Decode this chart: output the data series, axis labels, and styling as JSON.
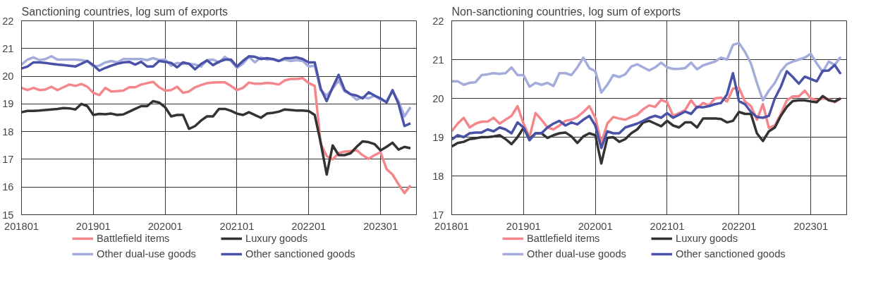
{
  "chart_data": [
    {
      "type": "line",
      "title": "Sanctioning countries, log sum of exports",
      "categories": [
        "201801",
        null,
        null,
        null,
        null,
        null,
        null,
        null,
        null,
        null,
        null,
        null,
        "201901",
        null,
        null,
        null,
        null,
        null,
        null,
        null,
        null,
        null,
        null,
        null,
        "202001",
        null,
        null,
        null,
        null,
        null,
        null,
        null,
        null,
        null,
        null,
        null,
        "202101",
        null,
        null,
        null,
        null,
        null,
        null,
        null,
        null,
        null,
        null,
        null,
        "202201",
        null,
        null,
        null,
        null,
        null,
        null,
        null,
        null,
        null,
        null,
        null,
        "202301",
        null,
        null,
        null,
        null,
        null
      ],
      "ylim": [
        15,
        22
      ],
      "yticks": [
        15,
        16,
        17,
        18,
        19,
        20,
        21,
        22
      ],
      "grid": true,
      "legend": "bottom",
      "marker": "none",
      "line_style": "solid",
      "series": [
        {
          "name": "Battlefield items",
          "color": "#f4868c",
          "values": [
            19.58,
            19.5,
            19.58,
            19.5,
            19.52,
            19.62,
            19.5,
            19.6,
            19.7,
            19.65,
            19.72,
            19.62,
            19.4,
            19.32,
            19.58,
            19.45,
            19.46,
            19.48,
            19.6,
            19.6,
            19.7,
            19.75,
            19.8,
            19.6,
            19.48,
            19.5,
            19.62,
            19.4,
            19.45,
            19.6,
            19.68,
            19.75,
            19.77,
            19.78,
            19.78,
            19.65,
            19.5,
            19.58,
            19.77,
            19.73,
            19.73,
            19.76,
            19.74,
            19.7,
            19.85,
            19.9,
            19.9,
            19.93,
            19.75,
            19.65,
            17.55,
            17.12,
            17.0,
            17.22,
            17.28,
            17.3,
            17.33,
            17.15,
            17.02,
            17.15,
            17.26,
            16.65,
            16.45,
            16.1,
            15.78,
            16.06
          ]
        },
        {
          "name": "Other dual-use goods",
          "color": "#a4acdb",
          "values": [
            20.42,
            20.6,
            20.68,
            20.58,
            20.62,
            20.72,
            20.6,
            20.6,
            20.6,
            20.6,
            20.58,
            20.55,
            20.35,
            20.38,
            20.5,
            20.55,
            20.5,
            20.62,
            20.62,
            20.62,
            20.62,
            20.58,
            20.65,
            20.58,
            20.6,
            20.38,
            20.48,
            20.45,
            20.45,
            20.42,
            20.35,
            20.58,
            20.6,
            20.5,
            20.7,
            20.55,
            20.3,
            20.45,
            20.7,
            20.5,
            20.68,
            20.6,
            20.62,
            20.55,
            20.6,
            20.55,
            20.58,
            20.55,
            20.35,
            20.38,
            19.5,
            19.3,
            19.55,
            19.85,
            19.45,
            19.35,
            19.15,
            19.25,
            19.2,
            19.3,
            19.15,
            19.1,
            19.45,
            19.1,
            18.55,
            18.88
          ]
        },
        {
          "name": "Luxury goods",
          "color": "#333333",
          "values": [
            18.7,
            18.75,
            18.75,
            18.76,
            18.78,
            18.8,
            18.82,
            18.85,
            18.84,
            18.8,
            19.0,
            18.92,
            18.6,
            18.64,
            18.63,
            18.65,
            18.6,
            18.62,
            18.72,
            18.82,
            18.92,
            18.92,
            19.1,
            19.05,
            18.88,
            18.55,
            18.6,
            18.6,
            18.1,
            18.2,
            18.4,
            18.55,
            18.55,
            18.82,
            18.82,
            18.75,
            18.65,
            18.6,
            18.7,
            18.6,
            18.5,
            18.65,
            18.68,
            18.72,
            18.8,
            18.78,
            18.76,
            18.76,
            18.74,
            18.6,
            17.6,
            16.45,
            17.5,
            17.15,
            17.15,
            17.22,
            17.45,
            17.65,
            17.62,
            17.55,
            17.32,
            17.45,
            17.6,
            17.35,
            17.45,
            17.4
          ]
        },
        {
          "name": "Other sanctioned goods",
          "color": "#4a52a8",
          "values": [
            20.28,
            20.35,
            20.5,
            20.5,
            20.48,
            20.45,
            20.42,
            20.4,
            20.38,
            20.35,
            20.45,
            20.55,
            20.4,
            20.2,
            20.3,
            20.38,
            20.45,
            20.5,
            20.52,
            20.42,
            20.52,
            20.35,
            20.35,
            20.55,
            20.52,
            20.48,
            20.32,
            20.5,
            20.45,
            20.25,
            20.44,
            20.57,
            20.4,
            20.52,
            20.6,
            20.6,
            20.35,
            20.55,
            20.72,
            20.7,
            20.62,
            20.65,
            20.62,
            20.55,
            20.65,
            20.65,
            20.68,
            20.62,
            20.5,
            20.5,
            19.55,
            19.1,
            19.6,
            20.05,
            19.5,
            19.35,
            19.3,
            19.2,
            19.42,
            19.3,
            19.2,
            19.05,
            19.5,
            19.0,
            18.2,
            18.3
          ]
        }
      ]
    },
    {
      "type": "line",
      "title": "Non-sanctioning countries, log sum of exports",
      "categories": [
        "201801",
        null,
        null,
        null,
        null,
        null,
        null,
        null,
        null,
        null,
        null,
        null,
        "201901",
        null,
        null,
        null,
        null,
        null,
        null,
        null,
        null,
        null,
        null,
        null,
        "202001",
        null,
        null,
        null,
        null,
        null,
        null,
        null,
        null,
        null,
        null,
        null,
        "202101",
        null,
        null,
        null,
        null,
        null,
        null,
        null,
        null,
        null,
        null,
        null,
        "202201",
        null,
        null,
        null,
        null,
        null,
        null,
        null,
        null,
        null,
        null,
        null,
        "202301",
        null,
        null,
        null,
        null,
        null
      ],
      "ylim": [
        17,
        22
      ],
      "yticks": [
        17,
        18,
        19,
        20,
        21,
        22
      ],
      "grid": true,
      "legend": "bottom",
      "marker": "none",
      "line_style": "solid",
      "series": [
        {
          "name": "Battlefield items",
          "color": "#f4868c",
          "values": [
            19.15,
            19.35,
            19.5,
            19.25,
            19.35,
            19.4,
            19.4,
            19.5,
            19.35,
            19.45,
            19.55,
            19.8,
            19.35,
            19.0,
            19.62,
            19.45,
            19.25,
            19.2,
            19.3,
            19.42,
            19.45,
            19.52,
            19.65,
            19.8,
            19.5,
            18.85,
            19.35,
            19.52,
            19.48,
            19.45,
            19.52,
            19.58,
            19.72,
            19.82,
            19.78,
            19.96,
            19.9,
            19.55,
            19.62,
            19.7,
            19.95,
            19.75,
            19.88,
            19.82,
            20.0,
            20.02,
            19.92,
            20.25,
            20.28,
            19.92,
            19.8,
            19.45,
            19.85,
            19.24,
            19.3,
            19.6,
            19.95,
            20.05,
            20.05,
            20.2,
            20.0,
            19.95,
            20.0,
            19.98,
            19.9,
            20.0
          ]
        },
        {
          "name": "Other dual-use goods",
          "color": "#a4acdb",
          "values": [
            20.44,
            20.44,
            20.35,
            20.4,
            20.42,
            20.6,
            20.62,
            20.65,
            20.63,
            20.65,
            20.8,
            20.6,
            20.6,
            20.3,
            20.4,
            20.35,
            20.4,
            20.32,
            20.65,
            20.65,
            20.6,
            20.8,
            21.05,
            20.78,
            20.7,
            20.15,
            20.35,
            20.6,
            20.55,
            20.62,
            20.82,
            20.88,
            20.8,
            20.72,
            20.8,
            20.92,
            20.8,
            20.76,
            20.76,
            20.78,
            20.92,
            20.75,
            20.85,
            20.9,
            20.95,
            21.05,
            21.0,
            21.38,
            21.43,
            21.2,
            20.9,
            20.4,
            19.95,
            20.2,
            20.4,
            20.7,
            20.88,
            20.95,
            21.0,
            21.05,
            21.15,
            20.9,
            20.68,
            20.95,
            20.86,
            21.07
          ]
        },
        {
          "name": "Luxury goods",
          "color": "#333333",
          "values": [
            18.76,
            18.85,
            18.88,
            18.95,
            18.97,
            19.0,
            19.0,
            19.02,
            19.05,
            18.95,
            18.82,
            19.0,
            19.24,
            18.95,
            19.1,
            19.1,
            18.98,
            19.05,
            19.1,
            19.12,
            19.02,
            18.85,
            19.02,
            19.1,
            19.05,
            18.32,
            18.98,
            19.0,
            18.88,
            18.95,
            19.1,
            19.2,
            19.38,
            19.42,
            19.35,
            19.28,
            19.42,
            19.3,
            19.25,
            19.38,
            19.38,
            19.25,
            19.48,
            19.48,
            19.48,
            19.47,
            19.38,
            19.42,
            19.65,
            19.6,
            19.6,
            19.1,
            18.9,
            19.15,
            19.25,
            19.55,
            19.78,
            19.93,
            19.95,
            19.95,
            19.92,
            19.9,
            20.06,
            19.95,
            19.92,
            20.0
          ]
        },
        {
          "name": "Other sanctioned goods",
          "color": "#4a52a8",
          "values": [
            18.94,
            19.05,
            19.0,
            19.1,
            19.12,
            19.12,
            19.2,
            19.15,
            19.25,
            19.2,
            19.1,
            19.38,
            19.25,
            18.92,
            19.1,
            19.1,
            19.25,
            19.35,
            19.42,
            19.3,
            19.38,
            19.33,
            19.45,
            19.55,
            19.3,
            18.72,
            19.15,
            19.1,
            19.1,
            19.25,
            19.3,
            19.35,
            19.42,
            19.5,
            19.55,
            19.5,
            19.62,
            19.5,
            19.58,
            19.66,
            19.6,
            19.78,
            19.77,
            19.8,
            19.85,
            19.88,
            20.1,
            20.65,
            19.93,
            19.85,
            19.65,
            19.52,
            19.5,
            19.55,
            20.0,
            20.3,
            20.7,
            20.55,
            20.38,
            20.56,
            20.5,
            20.44,
            20.71,
            20.72,
            20.86,
            20.63
          ]
        }
      ]
    }
  ]
}
